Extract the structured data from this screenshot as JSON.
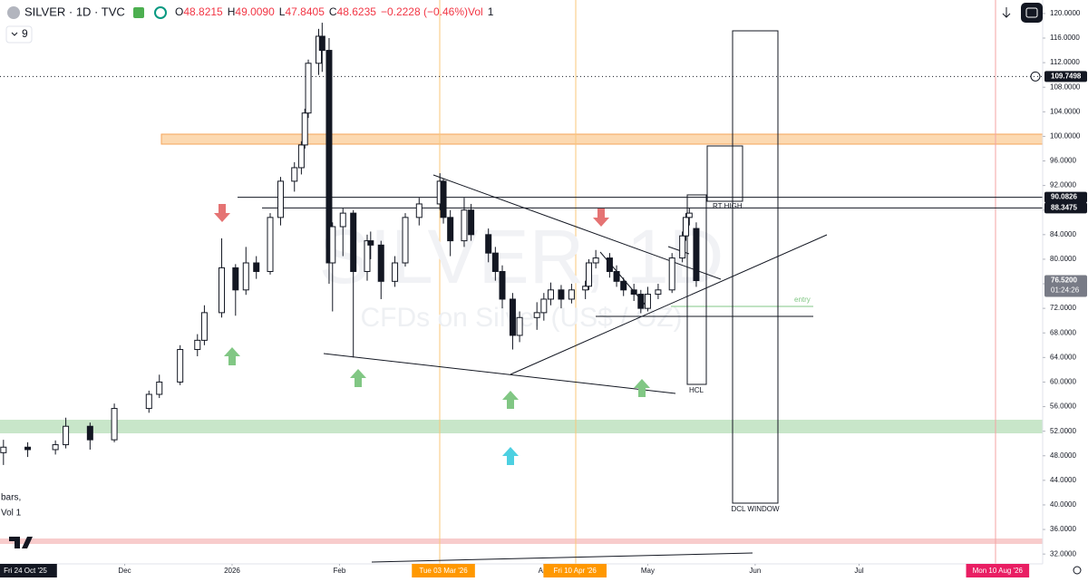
{
  "header": {
    "symbol": "SILVER · 1D · TVC",
    "ohlc": [
      "O",
      "48.8215",
      "H",
      "49.0090",
      "L",
      "47.8405",
      "C",
      "48.6235",
      "−0.2228 (−0.46%)",
      "Vol",
      "1"
    ],
    "indicator_count": "9",
    "legend_lines": [
      "bars,",
      "Vol 1"
    ]
  },
  "chart_data": {
    "type": "candlestick",
    "watermark": [
      "SILVER, 1D",
      "CFDs on Silver (US$ / OZ)"
    ],
    "up_color": "#ffffff",
    "down_color": "#131722",
    "wick_color": "#131722",
    "x": [
      "2025-10-27",
      "2025-11-03",
      "2025-11-11",
      "2025-11-14",
      "2025-11-21",
      "2025-11-28",
      "2025-12-08",
      "2025-12-11",
      "2025-12-17",
      "2025-12-22",
      "2025-12-24",
      "2025-12-29",
      "2026-01-02",
      "2026-01-05",
      "2026-01-08",
      "2026-01-12",
      "2026-01-15",
      "2026-01-19",
      "2026-01-21",
      "2026-01-22",
      "2026-01-23",
      "2026-01-26",
      "2026-01-27",
      "2026-01-29",
      "2026-01-30",
      "2026-02-02",
      "2026-02-05",
      "2026-02-09",
      "2026-02-10",
      "2026-02-13",
      "2026-02-17",
      "2026-02-20",
      "2026-02-24",
      "2026-03-02",
      "2026-03-03",
      "2026-03-05",
      "2026-03-09",
      "2026-03-11",
      "2026-03-16",
      "2026-03-18",
      "2026-03-20",
      "2026-03-23",
      "2026-03-25",
      "2026-03-30",
      "2026-04-01",
      "2026-04-03",
      "2026-04-06",
      "2026-04-09",
      "2026-04-13",
      "2026-04-14",
      "2026-04-16",
      "2026-04-20",
      "2026-04-22",
      "2026-04-24",
      "2026-04-27",
      "2026-04-29",
      "2026-05-01",
      "2026-05-04",
      "2026-05-08",
      "2026-05-11",
      "2026-05-12",
      "2026-05-13",
      "2026-05-15"
    ],
    "open": [
      48.5,
      49.4,
      49.0,
      49.8,
      52.8,
      50.6,
      55.7,
      58.0,
      60.0,
      65.3,
      66.8,
      71.3,
      78.6,
      75.0,
      79.4,
      78.0,
      86.8,
      92.7,
      94.9,
      98.6,
      103.8,
      111.9,
      116.3,
      114.0,
      79.4,
      85.3,
      87.5,
      78.0,
      83.0,
      82.3,
      76.4,
      79.4,
      86.8,
      89.0,
      92.7,
      86.8,
      83.0,
      88.0,
      84.0,
      81.0,
      78.0,
      73.5,
      67.6,
      70.5,
      71.3,
      73.5,
      75.0,
      73.5,
      75.0,
      75.6,
      79.4,
      80.2,
      78.0,
      76.4,
      75.0,
      74.3,
      72.0,
      74.3,
      75.0,
      80.2,
      83.8,
      86.8,
      85.0
    ],
    "high": [
      50.6,
      50.2,
      50.5,
      54.2,
      53.4,
      56.5,
      58.6,
      61.2,
      66.0,
      67.8,
      72.5,
      83.4,
      79.2,
      82.0,
      80.5,
      87.5,
      93.4,
      95.8,
      99.2,
      104.5,
      112.5,
      117.5,
      118.5,
      116.0,
      86.0,
      88.3,
      88.0,
      84.0,
      84.5,
      83.0,
      80.5,
      87.5,
      90.0,
      94.0,
      93.2,
      88.0,
      90.0,
      89.0,
      85.0,
      82.0,
      79.0,
      74.5,
      71.5,
      73.0,
      74.5,
      76.2,
      75.8,
      76.0,
      76.5,
      80.0,
      81.5,
      81.0,
      79.0,
      77.0,
      76.0,
      75.0,
      75.5,
      76.0,
      81.0,
      84.5,
      87.5,
      88.3,
      86.0
    ],
    "low": [
      46.5,
      47.8,
      48.2,
      49.2,
      49.0,
      50.2,
      55.0,
      57.4,
      59.5,
      64.2,
      66.0,
      70.5,
      70.8,
      74.2,
      76.8,
      77.5,
      85.5,
      91.0,
      93.8,
      98.0,
      103.0,
      110.0,
      110.5,
      76.0,
      71.5,
      80.5,
      64.0,
      76.5,
      80.0,
      73.5,
      75.5,
      78.8,
      85.5,
      88.0,
      85.8,
      80.5,
      82.0,
      83.0,
      79.5,
      76.5,
      72.0,
      65.3,
      66.5,
      68.5,
      70.0,
      72.5,
      72.0,
      72.8,
      73.5,
      75.0,
      78.5,
      77.0,
      75.5,
      74.0,
      73.2,
      71.2,
      71.5,
      73.5,
      74.5,
      79.5,
      83.0,
      85.5,
      75.5
    ],
    "close": [
      49.4,
      49.0,
      49.8,
      52.8,
      50.6,
      55.7,
      58.0,
      60.0,
      65.3,
      66.8,
      71.3,
      78.6,
      75.0,
      79.4,
      78.0,
      86.8,
      92.7,
      94.9,
      98.6,
      103.8,
      111.9,
      116.3,
      114.0,
      79.4,
      85.3,
      87.5,
      78.0,
      83.0,
      82.3,
      76.4,
      79.4,
      86.8,
      89.0,
      92.7,
      86.8,
      83.0,
      88.0,
      84.0,
      81.0,
      78.0,
      73.5,
      67.6,
      70.5,
      71.3,
      73.5,
      75.0,
      73.5,
      75.0,
      75.6,
      79.4,
      80.2,
      78.0,
      76.4,
      75.0,
      74.3,
      72.0,
      74.3,
      75.0,
      80.2,
      83.8,
      86.8,
      87.5,
      76.52
    ],
    "xlim": [
      "2025-10-26",
      "2026-08-23"
    ],
    "xticks": [
      {
        "value": "2025-10-24",
        "label": "Fri 24 Oct '25",
        "color": "#131722"
      },
      {
        "value": "2025-12-01",
        "label": "Dec"
      },
      {
        "value": "2026-01-01",
        "label": "2026"
      },
      {
        "value": "2026-02-01",
        "label": "Feb"
      },
      {
        "value": "2026-03-03",
        "label": "Tue 03 Mar '26",
        "color": "#ff9800"
      },
      {
        "value": "2026-04-01",
        "label": "Apr"
      },
      {
        "value": "2026-04-10",
        "label": "Fri 10 Apr '26",
        "color": "#ff9800"
      },
      {
        "value": "2026-05-01",
        "label": "May"
      },
      {
        "value": "2026-06-01",
        "label": "Jun"
      },
      {
        "value": "2026-07-01",
        "label": "Jul"
      },
      {
        "value": "2026-08-10",
        "label": "Mon 10 Aug '26",
        "color": "#e91e63"
      }
    ],
    "ylim": [
      30.4,
      122.2
    ],
    "yticks": [
      {
        "value": 32,
        "label": "32.0000"
      },
      {
        "value": 36,
        "label": "36.0000"
      },
      {
        "value": 40,
        "label": "40.0000"
      },
      {
        "value": 44,
        "label": "44.0000"
      },
      {
        "value": 48,
        "label": "48.0000"
      },
      {
        "value": 52,
        "label": "52.0000"
      },
      {
        "value": 56,
        "label": "56.0000"
      },
      {
        "value": 60,
        "label": "60.0000"
      },
      {
        "value": 64,
        "label": "64.0000"
      },
      {
        "value": 68,
        "label": "68.0000"
      },
      {
        "value": 72,
        "label": "72.0000"
      },
      {
        "value": 76,
        "label": "76.0000"
      },
      {
        "value": 80,
        "label": "80.0000"
      },
      {
        "value": 84,
        "label": "84.0000"
      },
      {
        "value": 88,
        "label": "88.0000"
      },
      {
        "value": 92,
        "label": "92.0000"
      },
      {
        "value": 96,
        "label": "96.0000"
      },
      {
        "value": 100,
        "label": "100.0000"
      },
      {
        "value": 104,
        "label": "104.0000"
      },
      {
        "value": 108,
        "label": "108.0000"
      },
      {
        "value": 112,
        "label": "112.0000"
      },
      {
        "value": 116,
        "label": "116.0000"
      },
      {
        "value": 120,
        "label": "120.0000"
      }
    ],
    "price_markers": [
      {
        "value": 109.7498,
        "label": "109.7498",
        "color": "#131722"
      },
      {
        "value": 90.0826,
        "label": "90.0826",
        "color": "#131722"
      },
      {
        "value": 88.3475,
        "label": "88.3475",
        "color": "#131722"
      },
      {
        "value": 76.52,
        "label": "76.5200",
        "color": "#787b86"
      }
    ],
    "countdown": "01:24:26",
    "annotations": [
      "RT HIGH",
      "HCL",
      "DCL WINDOW",
      "entry"
    ]
  }
}
